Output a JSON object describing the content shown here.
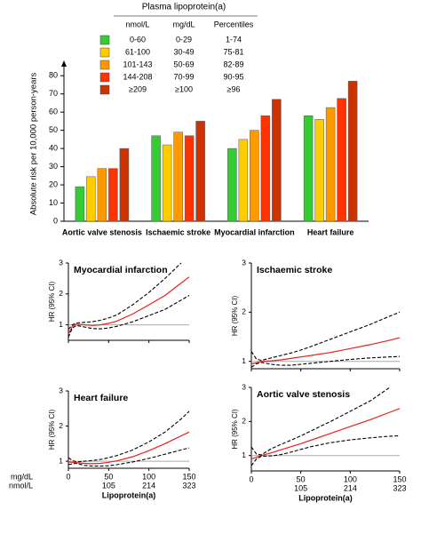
{
  "chart_data": [
    {
      "type": "bar",
      "categories": [
        "Aortic valve stenosis",
        "Ischaemic stroke",
        "Myocardial infarction",
        "Heart failure"
      ],
      "ylabel": "Absolute risk per 10,000 person-years",
      "ylim": [
        0,
        85
      ],
      "yticks": [
        0,
        10,
        20,
        30,
        40,
        50,
        60,
        70,
        80
      ],
      "legend": {
        "title": "Plasma lipoprotein(a)",
        "columns": [
          "nmol/L",
          "mg/dL",
          "Percentiles"
        ]
      },
      "series": [
        {
          "name": "0-60",
          "mg_dl": "0-29",
          "percentiles": "1-74",
          "color": "#33cc33",
          "values": [
            19,
            47,
            40,
            58
          ]
        },
        {
          "name": "61-100",
          "mg_dl": "30-49",
          "percentiles": "75-81",
          "color": "#ffcc00",
          "values": [
            24.5,
            42,
            45,
            56
          ]
        },
        {
          "name": "101-143",
          "mg_dl": "50-69",
          "percentiles": "82-89",
          "color": "#ff9900",
          "values": [
            29,
            49,
            50,
            62.5
          ]
        },
        {
          "name": "144-208",
          "mg_dl": "70-99",
          "percentiles": "90-95",
          "color": "#ff3300",
          "values": [
            29,
            47,
            58,
            67.5
          ]
        },
        {
          "name": "≥209",
          "mg_dl": "≥100",
          "percentiles": "≥96",
          "color": "#cc3300",
          "values": [
            40,
            55,
            67,
            77
          ]
        }
      ]
    },
    {
      "type": "line",
      "title": "Myocardial infarction",
      "ylabel": "HR (95% CI)",
      "ylim": [
        0.5,
        3
      ],
      "yticks": [
        1,
        2,
        3
      ],
      "xlim": [
        0,
        150
      ],
      "xticks": [
        0,
        50,
        100,
        150
      ],
      "show_xtick_labels": false,
      "reference_line": 1,
      "x": [
        0,
        5,
        10,
        20,
        30,
        40,
        50,
        60,
        80,
        100,
        120,
        140,
        150
      ],
      "series": [
        {
          "color": "#e8211c",
          "style": "solid",
          "values": [
            0.7,
            0.95,
            1.02,
            1.0,
            0.98,
            1.0,
            1.05,
            1.12,
            1.35,
            1.65,
            1.95,
            2.35,
            2.55
          ]
        },
        {
          "color": "#000000",
          "style": "dashed",
          "values": [
            0.6,
            0.9,
            0.98,
            0.93,
            0.88,
            0.87,
            0.9,
            0.95,
            1.1,
            1.3,
            1.5,
            1.8,
            1.95
          ]
        },
        {
          "color": "#000000",
          "style": "dashed",
          "values": [
            0.85,
            1.0,
            1.06,
            1.08,
            1.1,
            1.15,
            1.22,
            1.32,
            1.65,
            2.05,
            2.5,
            3.0,
            null
          ]
        }
      ]
    },
    {
      "type": "line",
      "title": "Ischaemic stroke",
      "ylabel": "HR (95% CI)",
      "ylim": [
        0.85,
        3
      ],
      "yticks": [
        1,
        2,
        3
      ],
      "xlim": [
        0,
        150
      ],
      "xticks": [
        0,
        50,
        100,
        150
      ],
      "show_xtick_labels": false,
      "reference_line": 1,
      "x": [
        0,
        5,
        10,
        20,
        30,
        40,
        50,
        60,
        80,
        100,
        120,
        140,
        150
      ],
      "series": [
        {
          "color": "#e8211c",
          "style": "solid",
          "values": [
            0.95,
            0.97,
            1.0,
            1.01,
            1.03,
            1.06,
            1.09,
            1.12,
            1.18,
            1.26,
            1.34,
            1.43,
            1.48
          ]
        },
        {
          "color": "#000000",
          "style": "dashed",
          "values": [
            0.88,
            0.95,
            0.98,
            0.94,
            0.92,
            0.92,
            0.94,
            0.96,
            1.0,
            1.04,
            1.07,
            1.09,
            1.1
          ]
        },
        {
          "color": "#000000",
          "style": "dashed",
          "values": [
            1.2,
            1.05,
            1.02,
            1.07,
            1.12,
            1.17,
            1.23,
            1.3,
            1.45,
            1.6,
            1.75,
            1.92,
            2.0
          ]
        }
      ]
    },
    {
      "type": "line",
      "title": "Heart failure",
      "ylabel": "HR (95% CI)",
      "ylim": [
        0.8,
        3
      ],
      "yticks": [
        1,
        2,
        3
      ],
      "xlim": [
        0,
        150
      ],
      "show_xtick_labels": true,
      "reference_line": 1,
      "xtick_units": [
        "mg/dL",
        "nmol/L"
      ],
      "xticks": [
        0,
        50,
        100,
        150
      ],
      "x2ticks": [
        {
          "value": 50,
          "label": "105"
        },
        {
          "value": 100,
          "label": "214"
        },
        {
          "value": 150,
          "label": "323"
        }
      ],
      "xlabel": "Lipoprotein(a)",
      "x": [
        0,
        5,
        10,
        20,
        30,
        40,
        50,
        60,
        80,
        100,
        120,
        140,
        150
      ],
      "series": [
        {
          "color": "#e8211c",
          "style": "solid",
          "values": [
            0.98,
            0.97,
            0.96,
            0.94,
            0.93,
            0.94,
            0.97,
            1.01,
            1.13,
            1.3,
            1.5,
            1.72,
            1.83
          ]
        },
        {
          "color": "#000000",
          "style": "dashed",
          "values": [
            0.9,
            0.93,
            0.94,
            0.88,
            0.86,
            0.86,
            0.87,
            0.9,
            0.98,
            1.08,
            1.2,
            1.32,
            1.38
          ]
        },
        {
          "color": "#000000",
          "style": "dashed",
          "values": [
            1.1,
            1.02,
            0.98,
            1.0,
            1.02,
            1.05,
            1.1,
            1.16,
            1.32,
            1.55,
            1.83,
            2.2,
            2.42
          ]
        }
      ]
    },
    {
      "type": "line",
      "title": "Aortic valve stenosis",
      "ylabel": "HR (95% CI)",
      "ylim": [
        0.55,
        3
      ],
      "yticks": [
        1,
        2,
        3
      ],
      "xlim": [
        0,
        150
      ],
      "show_xtick_labels": true,
      "reference_line": 1,
      "xticks": [
        0,
        50,
        100,
        150
      ],
      "x2ticks": [
        {
          "value": 50,
          "label": "105"
        },
        {
          "value": 100,
          "label": "214"
        },
        {
          "value": 150,
          "label": "323"
        }
      ],
      "xlabel": "Lipoprotein(a)",
      "x": [
        0,
        5,
        10,
        20,
        30,
        40,
        50,
        60,
        80,
        100,
        120,
        140,
        150
      ],
      "series": [
        {
          "color": "#e8211c",
          "style": "solid",
          "values": [
            0.9,
            0.95,
            1.0,
            1.08,
            1.17,
            1.26,
            1.35,
            1.45,
            1.65,
            1.85,
            2.05,
            2.27,
            2.38
          ]
        },
        {
          "color": "#000000",
          "style": "dashed",
          "values": [
            0.7,
            0.9,
            0.98,
            0.99,
            1.03,
            1.1,
            1.18,
            1.26,
            1.38,
            1.46,
            1.52,
            1.57,
            1.58
          ]
        },
        {
          "color": "#000000",
          "style": "dashed",
          "values": [
            1.25,
            1.05,
            1.02,
            1.2,
            1.33,
            1.45,
            1.58,
            1.72,
            2.0,
            2.3,
            2.6,
            3.0,
            null
          ]
        }
      ]
    }
  ]
}
